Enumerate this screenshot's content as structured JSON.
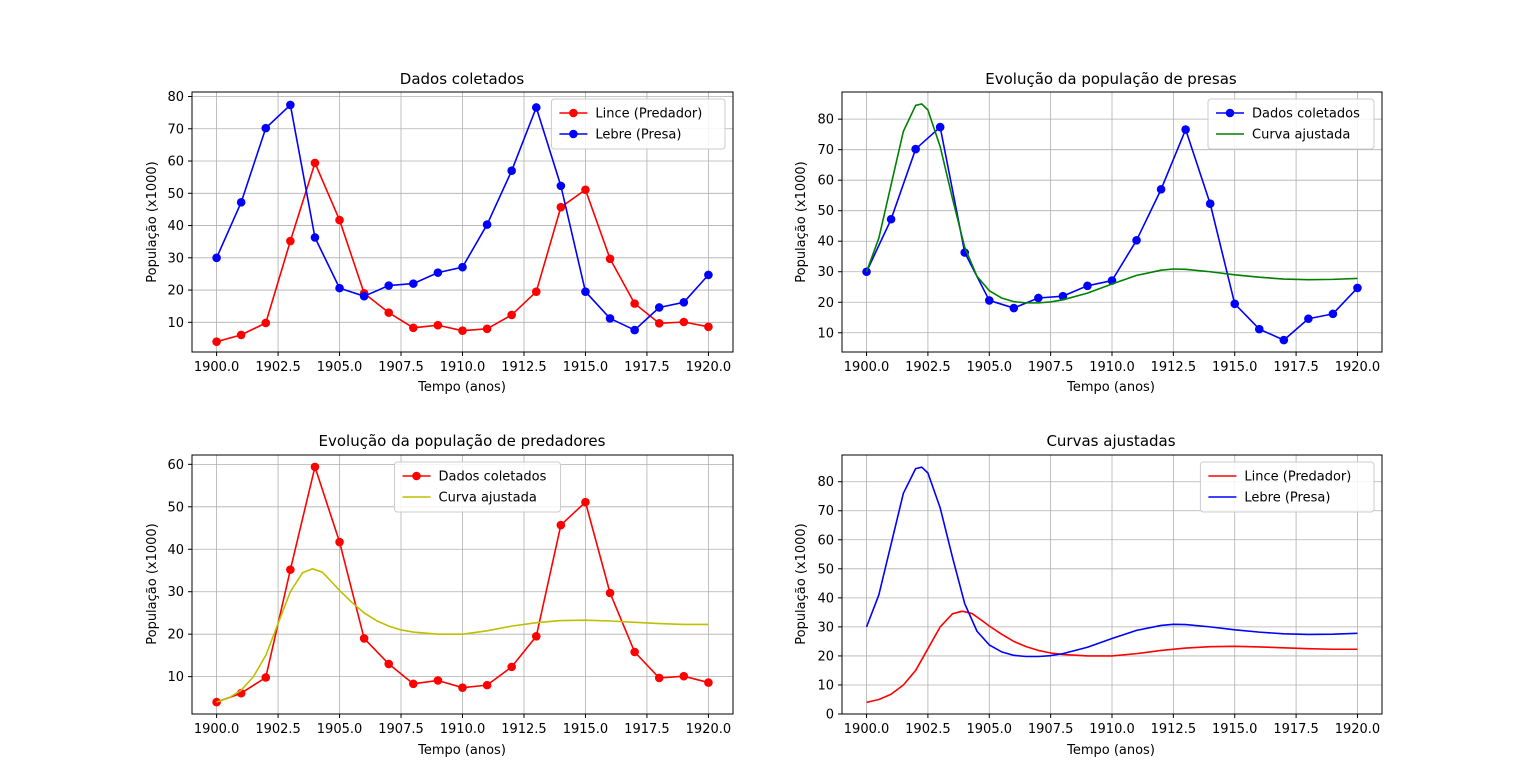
{
  "chart_data": [
    {
      "type": "line",
      "title": "Dados coletados",
      "xlabel": "Tempo (anos)",
      "ylabel": "População (x1000)",
      "xlim": [
        1899.0,
        1921.0
      ],
      "ylim": [
        0.8,
        81.4
      ],
      "xticks": [
        1900.0,
        1902.5,
        1905.0,
        1907.5,
        1910.0,
        1912.5,
        1915.0,
        1917.5,
        1920.0
      ],
      "xtick_labels": [
        "1900.0",
        "1902.5",
        "1905.0",
        "1907.5",
        "1910.0",
        "1912.5",
        "1915.0",
        "1917.5",
        "1920.0"
      ],
      "yticks": [
        10,
        20,
        30,
        40,
        50,
        60,
        70,
        80
      ],
      "ytick_labels": [
        "10",
        "20",
        "30",
        "40",
        "50",
        "60",
        "70",
        "80"
      ],
      "grid": true,
      "legend": "top-right",
      "series": [
        {
          "name": "Lince (Predador)",
          "color": "#ff0000",
          "marker": true,
          "x": [
            1900,
            1901,
            1902,
            1903,
            1904,
            1905,
            1906,
            1907,
            1908,
            1909,
            1910,
            1911,
            1912,
            1913,
            1914,
            1915,
            1916,
            1917,
            1918,
            1919,
            1920
          ],
          "values": [
            4.0,
            6.1,
            9.8,
            35.2,
            59.4,
            41.7,
            19.0,
            13.0,
            8.3,
            9.1,
            7.4,
            8.0,
            12.3,
            19.5,
            45.7,
            51.1,
            29.7,
            15.8,
            9.7,
            10.1,
            8.6
          ]
        },
        {
          "name": "Lebre (Presa)",
          "color": "#0000ff",
          "marker": true,
          "x": [
            1900,
            1901,
            1902,
            1903,
            1904,
            1905,
            1906,
            1907,
            1908,
            1909,
            1910,
            1911,
            1912,
            1913,
            1914,
            1915,
            1916,
            1917,
            1918,
            1919,
            1920
          ],
          "values": [
            30.0,
            47.2,
            70.2,
            77.4,
            36.3,
            20.6,
            18.1,
            21.4,
            22.0,
            25.4,
            27.1,
            40.3,
            57.0,
            76.6,
            52.3,
            19.5,
            11.2,
            7.6,
            14.6,
            16.2,
            24.7
          ]
        }
      ]
    },
    {
      "type": "line",
      "title": "Evolução da população de presas",
      "xlabel": "Tempo (anos)",
      "ylabel": "População (x1000)",
      "xlim": [
        1899.0,
        1921.0
      ],
      "ylim": [
        3.7,
        88.9
      ],
      "xticks": [
        1900.0,
        1902.5,
        1905.0,
        1907.5,
        1910.0,
        1912.5,
        1915.0,
        1917.5,
        1920.0
      ],
      "xtick_labels": [
        "1900.0",
        "1902.5",
        "1905.0",
        "1907.5",
        "1910.0",
        "1912.5",
        "1915.0",
        "1917.5",
        "1920.0"
      ],
      "yticks": [
        10,
        20,
        30,
        40,
        50,
        60,
        70,
        80
      ],
      "ytick_labels": [
        "10",
        "20",
        "30",
        "40",
        "50",
        "60",
        "70",
        "80"
      ],
      "grid": true,
      "legend": "top-right",
      "series": [
        {
          "name": "Dados coletados",
          "color": "#0000ff",
          "marker": true,
          "x": [
            1900,
            1901,
            1902,
            1903,
            1904,
            1905,
            1906,
            1907,
            1908,
            1909,
            1910,
            1911,
            1912,
            1913,
            1914,
            1915,
            1916,
            1917,
            1918,
            1919,
            1920
          ],
          "values": [
            30.0,
            47.2,
            70.2,
            77.4,
            36.3,
            20.6,
            18.1,
            21.4,
            22.0,
            25.4,
            27.1,
            40.3,
            57.0,
            76.6,
            52.3,
            19.5,
            11.2,
            7.6,
            14.6,
            16.2,
            24.7
          ]
        },
        {
          "name": "Curva ajustada",
          "color": "#008000",
          "marker": false,
          "x": [
            1900,
            1900.5,
            1901,
            1901.5,
            1902,
            1902.25,
            1902.5,
            1903,
            1903.5,
            1904,
            1904.5,
            1905,
            1905.5,
            1906,
            1906.5,
            1907,
            1907.5,
            1908,
            1909,
            1910,
            1911,
            1912,
            1912.5,
            1913,
            1914,
            1915,
            1916,
            1917,
            1918,
            1919,
            1920
          ],
          "values": [
            30.0,
            41.0,
            58.5,
            76.0,
            84.5,
            85.0,
            83.0,
            71.0,
            54.0,
            38.0,
            28.5,
            23.8,
            21.4,
            20.2,
            19.8,
            19.8,
            20.1,
            20.8,
            23.0,
            26.0,
            28.8,
            30.5,
            30.9,
            30.8,
            30.0,
            29.0,
            28.2,
            27.6,
            27.4,
            27.5,
            27.8
          ]
        }
      ]
    },
    {
      "type": "line",
      "title": "Evolução da população de predadores",
      "xlabel": "Tempo (anos)",
      "ylabel": "População (x1000)",
      "xlim": [
        1899.0,
        1921.0
      ],
      "ylim": [
        1.2,
        62.2
      ],
      "xticks": [
        1900.0,
        1902.5,
        1905.0,
        1907.5,
        1910.0,
        1912.5,
        1915.0,
        1917.5,
        1920.0
      ],
      "xtick_labels": [
        "1900.0",
        "1902.5",
        "1905.0",
        "1907.5",
        "1910.0",
        "1912.5",
        "1915.0",
        "1917.5",
        "1920.0"
      ],
      "yticks": [
        10,
        20,
        30,
        40,
        50,
        60
      ],
      "ytick_labels": [
        "10",
        "20",
        "30",
        "40",
        "50",
        "60"
      ],
      "grid": true,
      "legend": "top-center",
      "series": [
        {
          "name": "Dados coletados",
          "color": "#ff0000",
          "marker": true,
          "x": [
            1900,
            1901,
            1902,
            1903,
            1904,
            1905,
            1906,
            1907,
            1908,
            1909,
            1910,
            1911,
            1912,
            1913,
            1914,
            1915,
            1916,
            1917,
            1918,
            1919,
            1920
          ],
          "values": [
            4.0,
            6.1,
            9.8,
            35.2,
            59.4,
            41.7,
            19.0,
            13.0,
            8.3,
            9.1,
            7.4,
            8.0,
            12.3,
            19.5,
            45.7,
            51.1,
            29.7,
            15.8,
            9.7,
            10.1,
            8.6
          ]
        },
        {
          "name": "Curva ajustada",
          "color": "#bfbf00",
          "marker": false,
          "x": [
            1900,
            1900.5,
            1901,
            1901.5,
            1902,
            1902.5,
            1903,
            1903.5,
            1903.9,
            1904.3,
            1904.7,
            1905,
            1905.5,
            1906,
            1906.5,
            1907,
            1907.5,
            1908,
            1909,
            1910,
            1911,
            1912,
            1913,
            1914,
            1915,
            1916,
            1917,
            1918,
            1919,
            1920
          ],
          "values": [
            4.0,
            5.0,
            6.8,
            10.0,
            15.0,
            22.5,
            30.0,
            34.5,
            35.4,
            34.6,
            32.2,
            30.3,
            27.5,
            25.0,
            23.2,
            21.9,
            21.0,
            20.5,
            20.0,
            20.0,
            20.8,
            21.9,
            22.7,
            23.2,
            23.3,
            23.1,
            22.8,
            22.5,
            22.3,
            22.3
          ]
        }
      ]
    },
    {
      "type": "line",
      "title": "Curvas ajustadas",
      "xlabel": "Tempo (anos)",
      "ylabel": "População (x1000)",
      "xlim": [
        1899.0,
        1921.0
      ],
      "ylim": [
        0,
        89.2
      ],
      "xticks": [
        1900.0,
        1902.5,
        1905.0,
        1907.5,
        1910.0,
        1912.5,
        1915.0,
        1917.5,
        1920.0
      ],
      "xtick_labels": [
        "1900.0",
        "1902.5",
        "1905.0",
        "1907.5",
        "1910.0",
        "1912.5",
        "1915.0",
        "1917.5",
        "1920.0"
      ],
      "yticks": [
        0,
        10,
        20,
        30,
        40,
        50,
        60,
        70,
        80
      ],
      "ytick_labels": [
        "0",
        "10",
        "20",
        "30",
        "40",
        "50",
        "60",
        "70",
        "80"
      ],
      "grid": true,
      "legend": "top-right",
      "series": [
        {
          "name": "Lince (Predador)",
          "color": "#ff0000",
          "marker": false,
          "x": [
            1900,
            1900.5,
            1901,
            1901.5,
            1902,
            1902.5,
            1903,
            1903.5,
            1903.9,
            1904.3,
            1904.7,
            1905,
            1905.5,
            1906,
            1906.5,
            1907,
            1907.5,
            1908,
            1909,
            1910,
            1911,
            1912,
            1913,
            1914,
            1915,
            1916,
            1917,
            1918,
            1919,
            1920
          ],
          "values": [
            4.0,
            5.0,
            6.8,
            10.0,
            15.0,
            22.5,
            30.0,
            34.5,
            35.4,
            34.6,
            32.2,
            30.3,
            27.5,
            25.0,
            23.2,
            21.9,
            21.0,
            20.5,
            20.0,
            20.0,
            20.8,
            21.9,
            22.7,
            23.2,
            23.3,
            23.1,
            22.8,
            22.5,
            22.3,
            22.3
          ]
        },
        {
          "name": "Lebre (Presa)",
          "color": "#0000ff",
          "marker": false,
          "x": [
            1900,
            1900.5,
            1901,
            1901.5,
            1902,
            1902.25,
            1902.5,
            1903,
            1903.5,
            1904,
            1904.5,
            1905,
            1905.5,
            1906,
            1906.5,
            1907,
            1907.5,
            1908,
            1909,
            1910,
            1911,
            1912,
            1912.5,
            1913,
            1914,
            1915,
            1916,
            1917,
            1918,
            1919,
            1920
          ],
          "values": [
            30.0,
            41.0,
            58.5,
            76.0,
            84.5,
            85.0,
            83.0,
            71.0,
            54.0,
            38.0,
            28.5,
            23.8,
            21.4,
            20.2,
            19.8,
            19.8,
            20.1,
            20.8,
            23.0,
            26.0,
            28.8,
            30.5,
            30.9,
            30.8,
            30.0,
            29.0,
            28.2,
            27.6,
            27.4,
            27.5,
            27.8
          ]
        }
      ]
    }
  ]
}
